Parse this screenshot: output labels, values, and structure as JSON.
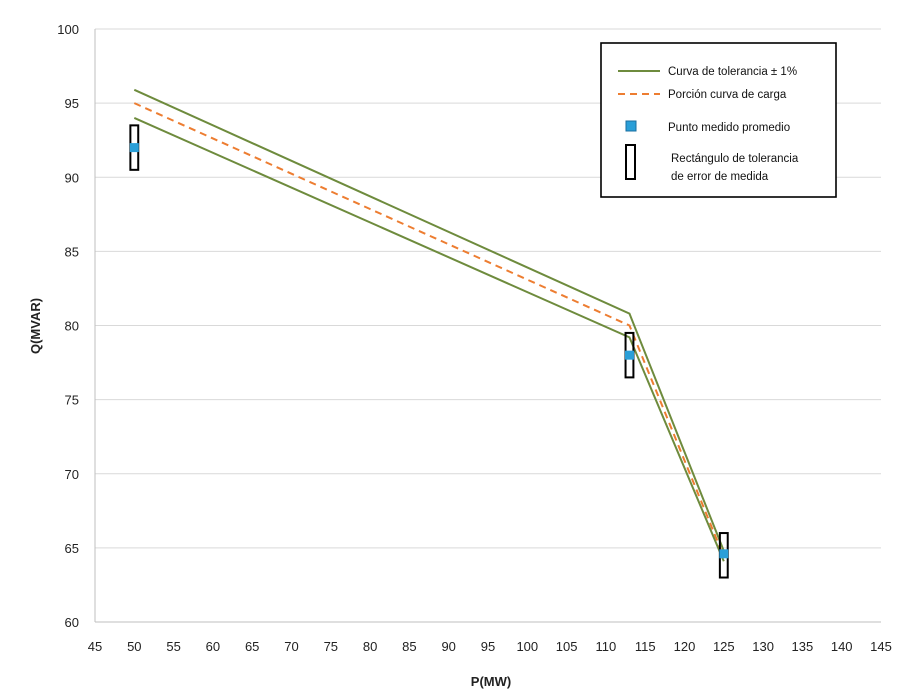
{
  "chart_data": {
    "type": "line",
    "xlabel": "P(MW)",
    "ylabel": "Q(MVAR)",
    "xlim": [
      45,
      145
    ],
    "ylim": [
      60,
      100
    ],
    "x_ticks": [
      45,
      50,
      55,
      60,
      65,
      70,
      75,
      80,
      85,
      90,
      95,
      100,
      105,
      110,
      115,
      120,
      125,
      130,
      135,
      140,
      145
    ],
    "y_ticks": [
      60,
      65,
      70,
      75,
      80,
      85,
      90,
      95,
      100
    ],
    "grid": "horizontal",
    "legend_position": "top-right",
    "series": [
      {
        "name": "Curva de tolerancia ± 1%",
        "style": "solid",
        "color": "#6e8b3d",
        "points": [
          [
            50,
            95.9
          ],
          [
            113,
            80.8
          ],
          [
            125,
            64.8
          ]
        ]
      },
      {
        "name": "",
        "style": "solid",
        "color": "#6e8b3d",
        "points": [
          [
            50,
            94.0
          ],
          [
            113,
            79.2
          ],
          [
            125,
            64.1
          ]
        ]
      },
      {
        "name": "Porción curva de carga",
        "style": "dashed",
        "color": "#ed7d31",
        "points": [
          [
            50,
            95.0
          ],
          [
            113,
            80.0
          ],
          [
            125,
            64.4
          ]
        ]
      }
    ],
    "measured_points": {
      "name": "Punto medido promedio",
      "color": "#2a9fd8",
      "points": [
        [
          50,
          92.0
        ],
        [
          113,
          78.0
        ],
        [
          125,
          64.6
        ]
      ]
    },
    "tolerance_rectangles": {
      "name": "Rectángulo de tolerancia de error de medida",
      "label_lines": [
        "Rectángulo de tolerancia",
        "de error de medida"
      ],
      "boxes": [
        {
          "x_center": 50,
          "x_halfwidth": 0.5,
          "y_min": 90.5,
          "y_max": 93.5
        },
        {
          "x_center": 113,
          "x_halfwidth": 0.5,
          "y_min": 76.5,
          "y_max": 79.5
        },
        {
          "x_center": 125,
          "x_halfwidth": 0.5,
          "y_min": 63.0,
          "y_max": 66.0
        }
      ]
    }
  }
}
